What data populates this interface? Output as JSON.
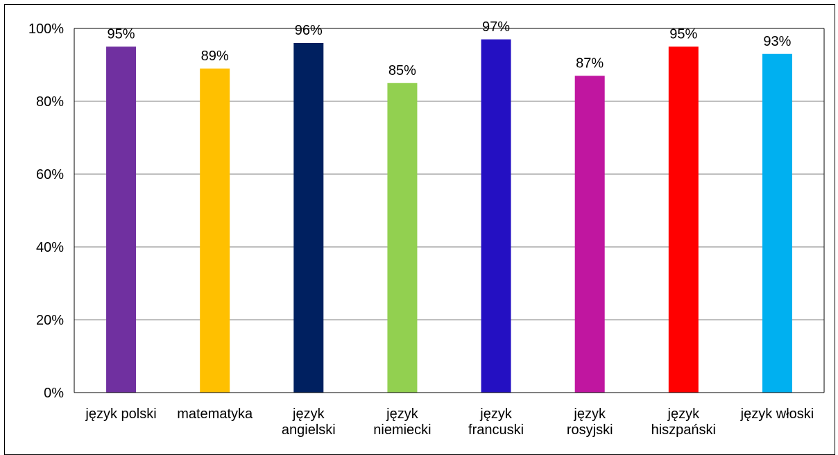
{
  "chart_data": {
    "type": "bar",
    "categories": [
      [
        "język polski"
      ],
      [
        "matematyka"
      ],
      [
        "język",
        "angielski"
      ],
      [
        "język",
        "niemiecki"
      ],
      [
        "język",
        "francuski"
      ],
      [
        "język",
        "rosyjski"
      ],
      [
        "język",
        "hiszpański"
      ],
      [
        "język włoski"
      ]
    ],
    "values": [
      95,
      89,
      96,
      85,
      97,
      87,
      95,
      93
    ],
    "data_labels": [
      "95%",
      "89%",
      "96%",
      "85%",
      "97%",
      "87%",
      "95%",
      "93%"
    ],
    "colors": [
      "#7030A0",
      "#FFC000",
      "#002060",
      "#92D050",
      "#2410C2",
      "#C016A0",
      "#FF0000",
      "#00B0F0"
    ],
    "y_ticks": [
      "0%",
      "20%",
      "40%",
      "60%",
      "80%",
      "100%"
    ],
    "ylim": [
      0,
      100
    ],
    "grid": true,
    "legend": "none"
  }
}
